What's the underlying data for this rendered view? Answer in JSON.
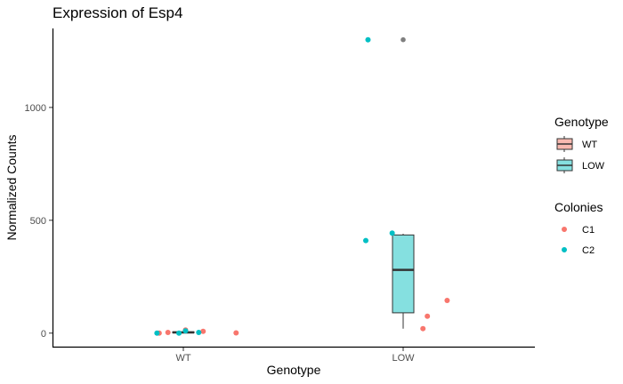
{
  "chart_data": {
    "type": "box",
    "title": "Expression of Esp4",
    "xlabel": "Genotype",
    "ylabel": "Normalized Counts",
    "categories": [
      "WT",
      "LOW"
    ],
    "yticks": [
      0,
      500,
      1000
    ],
    "ylim": [
      -60,
      1350
    ],
    "grid": false,
    "boxes": [
      {
        "category": "WT",
        "min": 0,
        "q1": 1,
        "median": 3,
        "q3": 6,
        "max": 13,
        "fill": "#F8B9B0",
        "outliers": []
      },
      {
        "category": "LOW",
        "min": 20,
        "q1": 90,
        "median": 280,
        "q3": 435,
        "max": 440,
        "fill": "#85E0E0",
        "outliers": [
          1300
        ]
      }
    ],
    "points": [
      {
        "category": "WT",
        "jitter": -0.11,
        "value": 0,
        "colony": "C1"
      },
      {
        "category": "WT",
        "jitter": -0.07,
        "value": 3,
        "colony": "C1"
      },
      {
        "category": "WT",
        "jitter": 0.01,
        "value": 14,
        "colony": "C1"
      },
      {
        "category": "WT",
        "jitter": 0.09,
        "value": 8,
        "colony": "C1"
      },
      {
        "category": "WT",
        "jitter": 0.24,
        "value": 1,
        "colony": "C1"
      },
      {
        "category": "WT",
        "jitter": -0.12,
        "value": 0,
        "colony": "C2"
      },
      {
        "category": "WT",
        "jitter": -0.02,
        "value": 0,
        "colony": "C2"
      },
      {
        "category": "WT",
        "jitter": 0.01,
        "value": 10,
        "colony": "C2"
      },
      {
        "category": "WT",
        "jitter": 0.07,
        "value": 3,
        "colony": "C2"
      },
      {
        "category": "LOW",
        "jitter": 0.09,
        "value": 20,
        "colony": "C1"
      },
      {
        "category": "LOW",
        "jitter": 0.11,
        "value": 75,
        "colony": "C1"
      },
      {
        "category": "LOW",
        "jitter": 0.2,
        "value": 145,
        "colony": "C1"
      },
      {
        "category": "LOW",
        "jitter": -0.17,
        "value": 410,
        "colony": "C2"
      },
      {
        "category": "LOW",
        "jitter": -0.05,
        "value": 443,
        "colony": "C2"
      },
      {
        "category": "LOW",
        "jitter": -0.16,
        "value": 1300,
        "colony": "C2"
      }
    ],
    "legend": {
      "placement": "right",
      "genotype": {
        "title": "Genotype",
        "items": [
          {
            "label": "WT",
            "fill": "#F8B9B0"
          },
          {
            "label": "LOW",
            "fill": "#85E0E0"
          }
        ]
      },
      "colonies": {
        "title": "Colonies",
        "items": [
          {
            "label": "C1",
            "color": "#F8766D"
          },
          {
            "label": "C2",
            "color": "#00BFC4"
          }
        ]
      }
    },
    "outlier_color": "#7f7f7f"
  }
}
